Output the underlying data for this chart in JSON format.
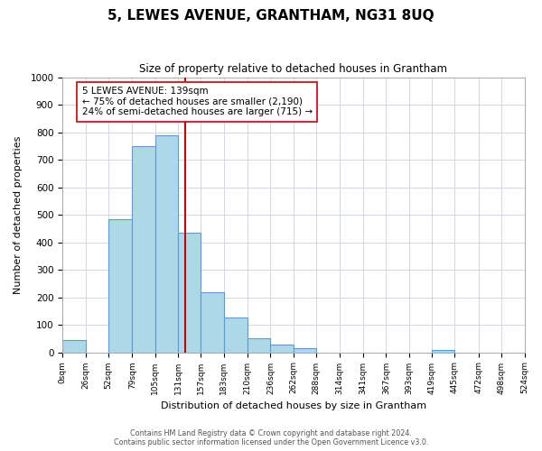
{
  "title": "5, LEWES AVENUE, GRANTHAM, NG31 8UQ",
  "subtitle": "Size of property relative to detached houses in Grantham",
  "xlabel": "Distribution of detached houses by size in Grantham",
  "ylabel": "Number of detached properties",
  "bar_edges": [
    0,
    26,
    52,
    79,
    105,
    131,
    157,
    183,
    210,
    236,
    262,
    288,
    314,
    341,
    367,
    393,
    419,
    445,
    472,
    498,
    524
  ],
  "bar_heights": [
    43,
    0,
    483,
    750,
    790,
    435,
    218,
    125,
    52,
    28,
    15,
    0,
    0,
    0,
    0,
    0,
    8,
    0,
    0,
    0
  ],
  "bar_color": "#add8e6",
  "bar_edge_color": "#5b9bd5",
  "property_line_x": 139,
  "property_line_color": "#cc0000",
  "annotation_text": "5 LEWES AVENUE: 139sqm\n← 75% of detached houses are smaller (2,190)\n24% of semi-detached houses are larger (715) →",
  "annotation_box_color": "#ffffff",
  "annotation_box_edge": "#cc0000",
  "tick_labels": [
    "0sqm",
    "26sqm",
    "52sqm",
    "79sqm",
    "105sqm",
    "131sqm",
    "157sqm",
    "183sqm",
    "210sqm",
    "236sqm",
    "262sqm",
    "288sqm",
    "314sqm",
    "341sqm",
    "367sqm",
    "393sqm",
    "419sqm",
    "445sqm",
    "472sqm",
    "498sqm",
    "524sqm"
  ],
  "ylim": [
    0,
    1000
  ],
  "yticks": [
    0,
    100,
    200,
    300,
    400,
    500,
    600,
    700,
    800,
    900,
    1000
  ],
  "footer_line1": "Contains HM Land Registry data © Crown copyright and database right 2024.",
  "footer_line2": "Contains public sector information licensed under the Open Government Licence v3.0.",
  "background_color": "#ffffff",
  "grid_color": "#d0d8e8"
}
